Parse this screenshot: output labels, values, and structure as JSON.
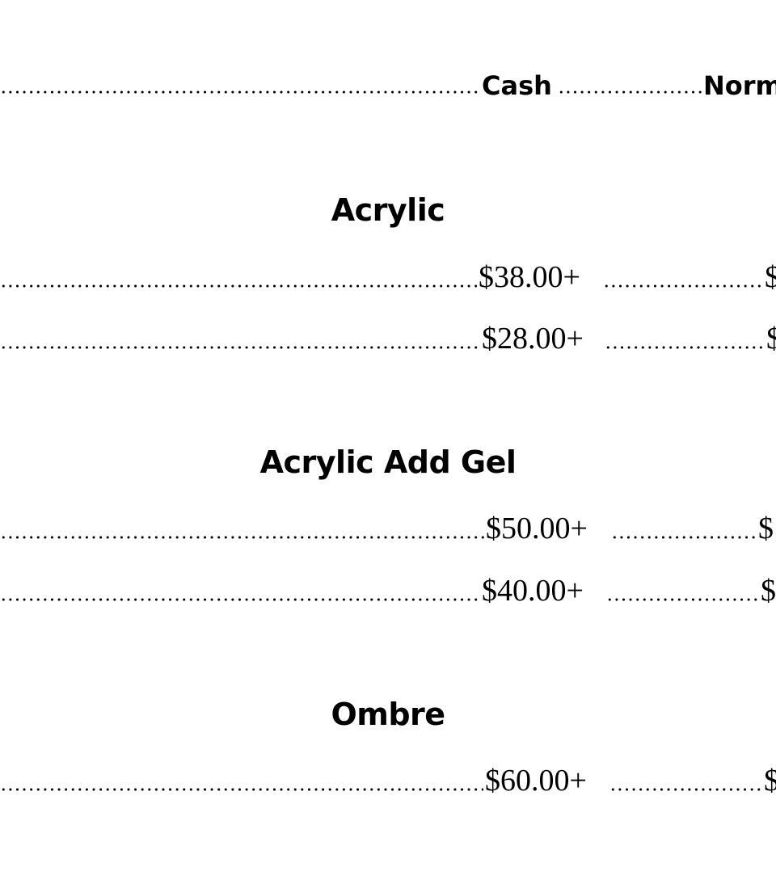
{
  "header": {
    "col1": "Cash",
    "col2_partial": "Norm"
  },
  "sections": [
    {
      "title": "Acrylic",
      "rows": [
        {
          "cash": "$38.00+",
          "normal_partial": "$"
        },
        {
          "cash": "$28.00+",
          "normal_partial": "$"
        }
      ]
    },
    {
      "title": "Acrylic Add Gel",
      "rows": [
        {
          "cash": "$50.00+",
          "normal_partial": "$"
        },
        {
          "cash": "$40.00+",
          "normal_partial": "$"
        }
      ]
    },
    {
      "title": "Ombre",
      "rows": [
        {
          "cash": "$60.00+",
          "normal_partial": "$"
        }
      ]
    }
  ]
}
